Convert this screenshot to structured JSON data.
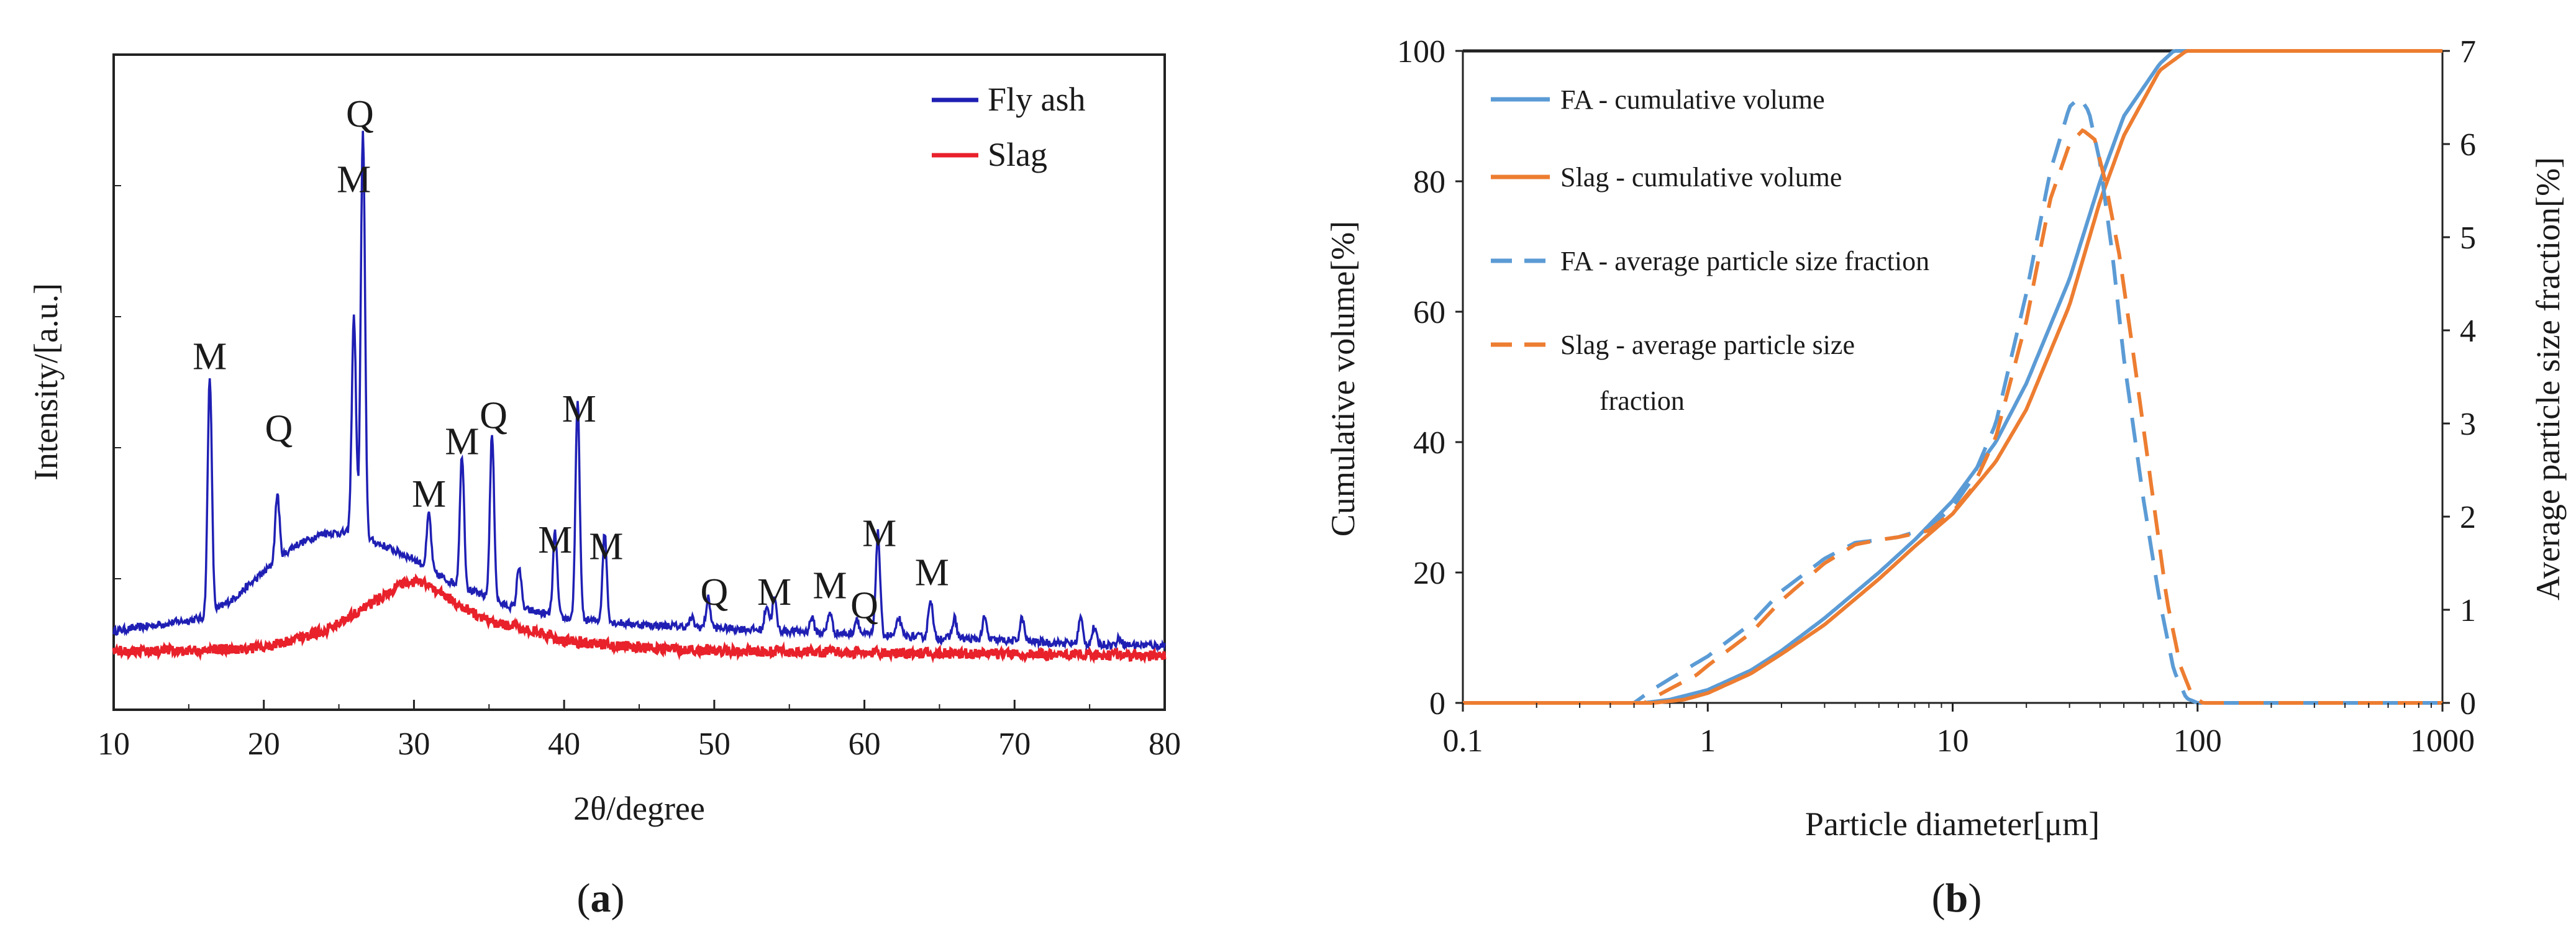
{
  "panels": {
    "a": {
      "label": "(a)",
      "letter": "a"
    },
    "b": {
      "label": "(b)",
      "letter": "b"
    }
  },
  "colors": {
    "fly_ash": "#1f1fb4",
    "slag_xrd": "#e8212b",
    "fa_psd": "#5b9bd5",
    "slag_psd": "#ed7d31",
    "axis": "#222222"
  },
  "chart_data": [
    {
      "id": "a",
      "type": "line",
      "title": "",
      "xlabel": "2θ/degree",
      "ylabel": "Intensity/[a.u.]",
      "xlim": [
        10,
        80
      ],
      "ylim": [
        0,
        100
      ],
      "xticks": [
        10,
        20,
        30,
        40,
        50,
        60,
        70,
        80
      ],
      "legend": {
        "position": "top-right",
        "entries": [
          "Fly ash",
          "Slag"
        ]
      },
      "series": [
        {
          "name": "Fly ash",
          "baseline": [
            [
              10,
              12
            ],
            [
              13,
              13
            ],
            [
              16,
              14
            ],
            [
              18,
              17
            ],
            [
              20,
              21
            ],
            [
              22,
              25
            ],
            [
              24,
              27
            ],
            [
              25.5,
              27
            ],
            [
              26,
              27
            ],
            [
              28,
              25
            ],
            [
              30,
              23
            ],
            [
              32,
              20
            ],
            [
              34,
              18
            ],
            [
              36,
              16
            ],
            [
              38,
              15
            ],
            [
              40,
              14
            ],
            [
              45,
              13
            ],
            [
              50,
              12.5
            ],
            [
              55,
              12
            ],
            [
              60,
              11.5
            ],
            [
              65,
              11
            ],
            [
              70,
              10.5
            ],
            [
              75,
              10
            ],
            [
              80,
              9.8
            ]
          ],
          "peaks": [
            [
              16.4,
              51
            ],
            [
              20.9,
              33
            ],
            [
              26.0,
              60
            ],
            [
              26.6,
              88
            ],
            [
              31.0,
              30
            ],
            [
              33.2,
              39
            ],
            [
              35.2,
              42
            ],
            [
              37.0,
              22
            ],
            [
              39.4,
              27
            ],
            [
              40.9,
              47
            ],
            [
              42.7,
              27
            ],
            [
              48.5,
              14
            ],
            [
              49.6,
              17
            ],
            [
              53.5,
              16
            ],
            [
              54.0,
              17
            ],
            [
              56.5,
              14
            ],
            [
              57.7,
              15
            ],
            [
              59.5,
              14
            ],
            [
              60.9,
              27
            ],
            [
              62.3,
              14
            ],
            [
              64.4,
              17
            ],
            [
              66.0,
              14
            ],
            [
              68.0,
              14
            ],
            [
              70.5,
              14
            ],
            [
              74.4,
              14
            ],
            [
              75.3,
              12.5
            ],
            [
              77.0,
              11
            ]
          ]
        },
        {
          "name": "Slag",
          "baseline": [
            [
              10,
              9
            ],
            [
              15,
              9
            ],
            [
              20,
              9.5
            ],
            [
              24,
              12
            ],
            [
              27,
              16
            ],
            [
              29,
              19
            ],
            [
              30,
              19.5
            ],
            [
              31,
              19
            ],
            [
              33,
              16
            ],
            [
              35,
              13.5
            ],
            [
              38,
              12
            ],
            [
              40,
              10.5
            ],
            [
              45,
              9.5
            ],
            [
              50,
              9
            ],
            [
              60,
              8.7
            ],
            [
              70,
              8.5
            ],
            [
              80,
              8.2
            ]
          ]
        }
      ],
      "peak_labels": [
        {
          "text": "M",
          "x": 16.4,
          "y": 52
        },
        {
          "text": "Q",
          "x": 21.0,
          "y": 41
        },
        {
          "text": "Q",
          "x": 26.4,
          "y": 89
        },
        {
          "text": "M",
          "x": 26.0,
          "y": 79
        },
        {
          "text": "M",
          "x": 31.0,
          "y": 31
        },
        {
          "text": "M",
          "x": 33.2,
          "y": 39
        },
        {
          "text": "Q",
          "x": 35.3,
          "y": 43
        },
        {
          "text": "M",
          "x": 41.0,
          "y": 44
        },
        {
          "text": "M",
          "x": 39.4,
          "y": 24
        },
        {
          "text": "M",
          "x": 42.8,
          "y": 23
        },
        {
          "text": "Q",
          "x": 50.0,
          "y": 16
        },
        {
          "text": "M",
          "x": 54.0,
          "y": 16
        },
        {
          "text": "M",
          "x": 57.7,
          "y": 17
        },
        {
          "text": "Q",
          "x": 60.0,
          "y": 14
        },
        {
          "text": "M",
          "x": 61.0,
          "y": 25
        },
        {
          "text": "M",
          "x": 64.5,
          "y": 19
        }
      ]
    },
    {
      "id": "b",
      "type": "line",
      "title": "",
      "xlabel": "Particle diameter[μm]",
      "ylabel": "Cumulative volume[%]",
      "y2label": "Average particle size fraction[%]",
      "xscale": "log",
      "xlim": [
        0.1,
        1000
      ],
      "ylim": [
        0,
        100
      ],
      "y2lim": [
        0,
        7
      ],
      "xticks": [
        "0.1",
        "1",
        "10",
        "100",
        "1000"
      ],
      "yticks": [
        0,
        20,
        40,
        60,
        80,
        100
      ],
      "y2ticks": [
        0,
        1,
        2,
        3,
        4,
        5,
        6,
        7
      ],
      "legend": {
        "position": "top-left",
        "entries": [
          {
            "name": "FA - cumulative volume",
            "style": "solid",
            "color": "fa"
          },
          {
            "name": "Slag - cumulative volume",
            "style": "solid",
            "color": "slag"
          },
          {
            "name": "FA - average particle size fraction",
            "style": "dashed",
            "color": "fa"
          },
          {
            "name": "Slag - average particle size",
            "name_line2": "fraction",
            "style": "dashed",
            "color": "slag"
          }
        ]
      },
      "series": [
        {
          "name": "FA - cumulative volume",
          "axis": "left",
          "style": "solid",
          "color": "fa",
          "points": [
            [
              0.1,
              0
            ],
            [
              0.55,
              0
            ],
            [
              0.7,
              0.5
            ],
            [
              1,
              2
            ],
            [
              1.5,
              5
            ],
            [
              2,
              8
            ],
            [
              3,
              13
            ],
            [
              5,
              20
            ],
            [
              7,
              25
            ],
            [
              10,
              31
            ],
            [
              15,
              40
            ],
            [
              20,
              49
            ],
            [
              30,
              65
            ],
            [
              40,
              80
            ],
            [
              50,
              90
            ],
            [
              70,
              98
            ],
            [
              80,
              100
            ],
            [
              1000,
              100
            ]
          ]
        },
        {
          "name": "Slag - cumulative volume",
          "axis": "left",
          "style": "solid",
          "color": "slag",
          "points": [
            [
              0.1,
              0
            ],
            [
              0.6,
              0
            ],
            [
              0.8,
              0.5
            ],
            [
              1,
              1.5
            ],
            [
              1.5,
              4.5
            ],
            [
              2,
              7.5
            ],
            [
              3,
              12
            ],
            [
              5,
              19
            ],
            [
              7,
              24
            ],
            [
              10,
              29
            ],
            [
              15,
              37
            ],
            [
              20,
              45
            ],
            [
              30,
              61
            ],
            [
              40,
              77
            ],
            [
              50,
              87
            ],
            [
              70,
              97
            ],
            [
              90,
              100
            ],
            [
              1000,
              100
            ]
          ]
        },
        {
          "name": "FA - average particle size fraction",
          "axis": "right",
          "style": "dashed",
          "color": "fa",
          "points": [
            [
              0.1,
              0
            ],
            [
              0.5,
              0
            ],
            [
              0.6,
              0.15
            ],
            [
              0.8,
              0.35
            ],
            [
              1,
              0.5
            ],
            [
              1.5,
              0.85
            ],
            [
              2,
              1.2
            ],
            [
              3,
              1.55
            ],
            [
              4,
              1.72
            ],
            [
              5,
              1.75
            ],
            [
              6,
              1.78
            ],
            [
              8,
              1.88
            ],
            [
              10,
              2.1
            ],
            [
              12,
              2.4
            ],
            [
              15,
              3.0
            ],
            [
              20,
              4.4
            ],
            [
              25,
              5.7
            ],
            [
              30,
              6.4
            ],
            [
              33,
              6.5
            ],
            [
              36,
              6.35
            ],
            [
              40,
              5.8
            ],
            [
              45,
              4.8
            ],
            [
              50,
              3.7
            ],
            [
              60,
              2.2
            ],
            [
              70,
              1.1
            ],
            [
              80,
              0.35
            ],
            [
              90,
              0.05
            ],
            [
              100,
              0
            ],
            [
              1000,
              0
            ]
          ]
        },
        {
          "name": "Slag - average particle size fraction",
          "axis": "right",
          "style": "dashed",
          "color": "slag",
          "points": [
            [
              0.1,
              0
            ],
            [
              0.55,
              0
            ],
            [
              0.7,
              0.15
            ],
            [
              0.9,
              0.3
            ],
            [
              1,
              0.4
            ],
            [
              1.5,
              0.75
            ],
            [
              2,
              1.1
            ],
            [
              3,
              1.5
            ],
            [
              4,
              1.7
            ],
            [
              5,
              1.75
            ],
            [
              6,
              1.78
            ],
            [
              8,
              1.85
            ],
            [
              10,
              2.05
            ],
            [
              12,
              2.3
            ],
            [
              15,
              2.85
            ],
            [
              20,
              4.1
            ],
            [
              25,
              5.4
            ],
            [
              30,
              6.0
            ],
            [
              34,
              6.15
            ],
            [
              38,
              6.05
            ],
            [
              42,
              5.6
            ],
            [
              48,
              4.8
            ],
            [
              55,
              3.7
            ],
            [
              65,
              2.3
            ],
            [
              75,
              1.1
            ],
            [
              85,
              0.4
            ],
            [
              95,
              0.08
            ],
            [
              105,
              0
            ],
            [
              1000,
              0
            ]
          ]
        }
      ]
    }
  ]
}
